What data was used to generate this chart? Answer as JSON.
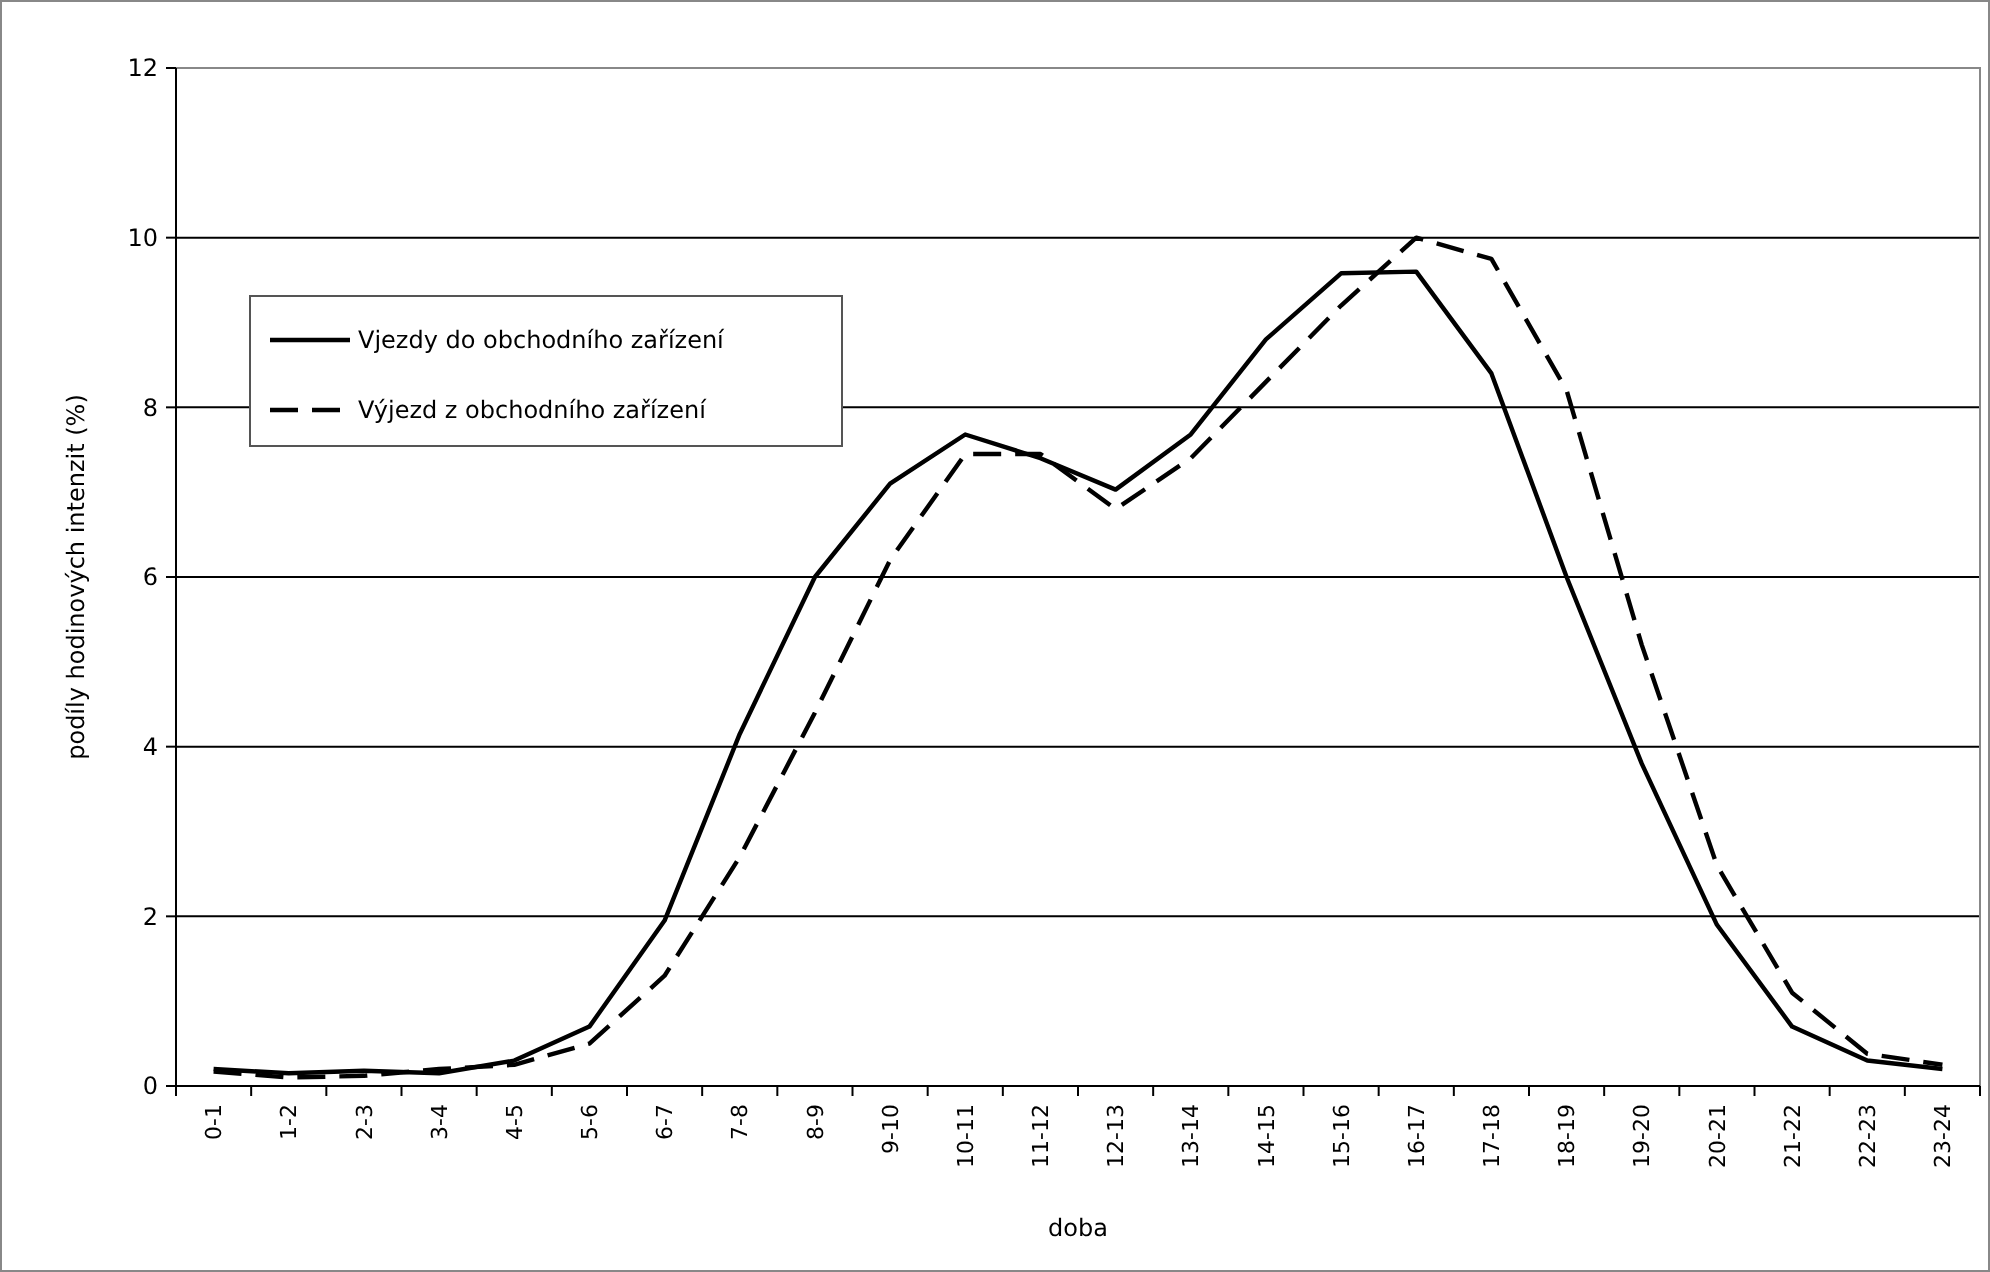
{
  "chart_data": {
    "type": "line",
    "xlabel": "doba",
    "ylabel": "podíly hodinových intenzit (%)",
    "categories": [
      "0-1",
      "1-2",
      "2-3",
      "3-4",
      "4-5",
      "5-6",
      "6-7",
      "7-8",
      "8-9",
      "9-10",
      "10-11",
      "11-12",
      "12-13",
      "13-14",
      "14-15",
      "15-16",
      "16-17",
      "17-18",
      "18-19",
      "19-20",
      "20-21",
      "21-22",
      "22-23",
      "23-24"
    ],
    "series": [
      {
        "name": "Vjezdy do obchodního zařízení",
        "color": "#000000",
        "line_style": "solid",
        "values": [
          0.2,
          0.15,
          0.18,
          0.15,
          0.3,
          0.7,
          1.95,
          4.15,
          6.0,
          7.1,
          7.68,
          7.4,
          7.03,
          7.68,
          8.8,
          9.58,
          9.6,
          8.4,
          6.0,
          3.8,
          1.9,
          0.7,
          0.3,
          0.2
        ]
      },
      {
        "name": "Výjezd z obchodního zařízení",
        "color": "#000000",
        "line_style": "dashed",
        "values": [
          0.17,
          0.1,
          0.12,
          0.2,
          0.25,
          0.5,
          1.3,
          2.7,
          4.4,
          6.2,
          7.45,
          7.45,
          6.8,
          7.4,
          8.3,
          9.2,
          10.0,
          9.75,
          8.2,
          5.2,
          2.6,
          1.1,
          0.38,
          0.25
        ]
      }
    ],
    "ylim": [
      0,
      12
    ],
    "yticks": [
      0,
      2,
      4,
      6,
      8,
      10,
      12
    ],
    "grid": "y",
    "legend": "top left",
    "marker": "none"
  }
}
